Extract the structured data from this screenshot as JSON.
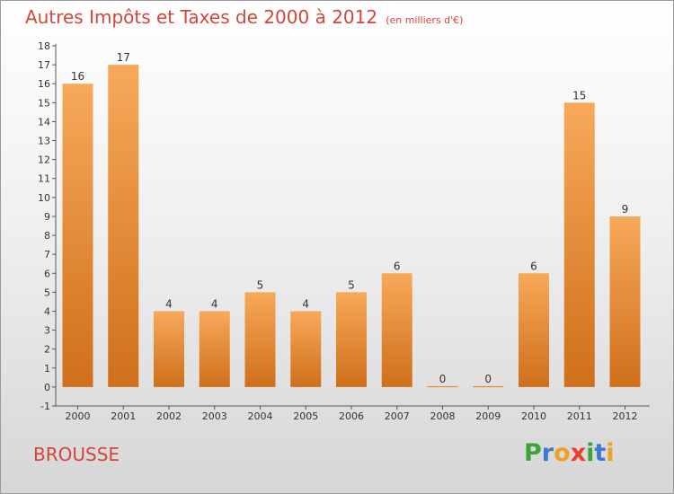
{
  "title": "Autres Impôts et Taxes de 2000 à 2012",
  "subtitle": "(en milliers d'€)",
  "place": "BROUSSE",
  "logo": "Proxiti",
  "colors": {
    "title": "#d2463b",
    "bar_top": "#f7a95a",
    "bar_bottom": "#cf6f1a"
  },
  "chart_data": {
    "type": "bar",
    "categories": [
      "2000",
      "2001",
      "2002",
      "2003",
      "2004",
      "2005",
      "2006",
      "2007",
      "2008",
      "2009",
      "2010",
      "2011",
      "2012"
    ],
    "values": [
      16,
      17,
      4,
      4,
      5,
      4,
      5,
      6,
      0,
      0,
      6,
      15,
      9
    ],
    "data_labels": [
      "16",
      "17",
      "4",
      "4",
      "5",
      "4",
      "5",
      "6",
      "0",
      "0",
      "6",
      "15",
      "9"
    ],
    "yticks": [
      "-1",
      "0",
      "1",
      "2",
      "3",
      "4",
      "5",
      "6",
      "7",
      "8",
      "9",
      "10",
      "11",
      "12",
      "13",
      "14",
      "15",
      "16",
      "17",
      "18"
    ],
    "ylim": [
      -1,
      18
    ],
    "grid": false
  }
}
